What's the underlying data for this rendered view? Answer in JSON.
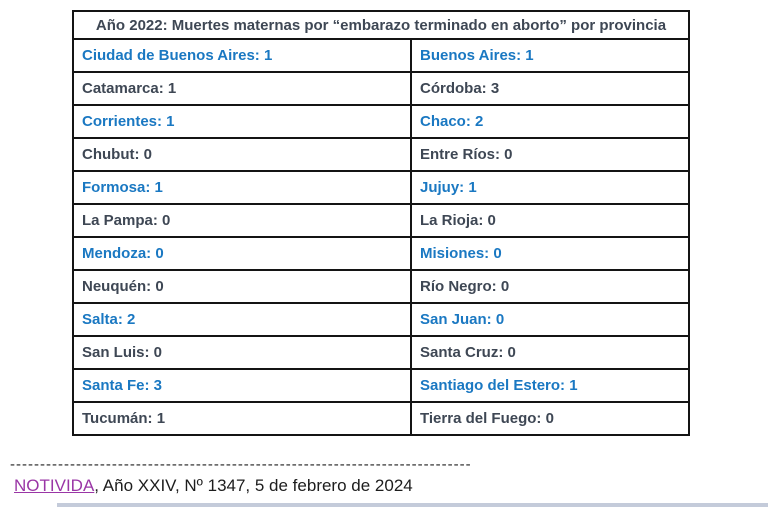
{
  "colors": {
    "highlight_blue": "#1a78c2",
    "text_dark": "#3e4754",
    "link_purple": "#9a36a6"
  },
  "table": {
    "title": "Año 2022: Muertes maternas por “embarazo terminado en aborto” por provincia",
    "rows": [
      {
        "highlight": true,
        "left": {
          "province": "Ciudad de Buenos Aires",
          "deaths": "1"
        },
        "right": {
          "province": "Buenos Aires",
          "deaths": "1"
        }
      },
      {
        "highlight": false,
        "left": {
          "province": "Catamarca",
          "deaths": "1"
        },
        "right": {
          "province": "Córdoba",
          "deaths": "3"
        }
      },
      {
        "highlight": true,
        "left": {
          "province": "Corrientes",
          "deaths": "1"
        },
        "right": {
          "province": "Chaco",
          "deaths": "2"
        }
      },
      {
        "highlight": false,
        "left": {
          "province": "Chubut",
          "deaths": "0"
        },
        "right": {
          "province": "Entre Ríos",
          "deaths": "0"
        }
      },
      {
        "highlight": true,
        "left": {
          "province": "Formosa",
          "deaths": "1"
        },
        "right": {
          "province": "Jujuy",
          "deaths": "1"
        }
      },
      {
        "highlight": false,
        "left": {
          "province": "La Pampa",
          "deaths": "0"
        },
        "right": {
          "province": "La Rioja",
          "deaths": "0"
        }
      },
      {
        "highlight": true,
        "left": {
          "province": "Mendoza",
          "deaths": "0"
        },
        "right": {
          "province": "Misiones",
          "deaths": "0"
        }
      },
      {
        "highlight": false,
        "left": {
          "province": "Neuquén",
          "deaths": "0"
        },
        "right": {
          "province": "Río Negro",
          "deaths": "0"
        }
      },
      {
        "highlight": true,
        "left": {
          "province": "Salta",
          "deaths": "2"
        },
        "right": {
          "province": "San Juan",
          "deaths": "0"
        }
      },
      {
        "highlight": false,
        "left": {
          "province": "San Luis",
          "deaths": "0"
        },
        "right": {
          "province": "Santa Cruz",
          "deaths": "0"
        }
      },
      {
        "highlight": true,
        "left": {
          "province": "Santa Fe",
          "deaths": "3"
        },
        "right": {
          "province": "Santiago del Estero",
          "deaths": "1"
        }
      },
      {
        "highlight": false,
        "left": {
          "province": "Tucumán",
          "deaths": "1"
        },
        "right": {
          "province": "Tierra del Fuego",
          "deaths": "0"
        }
      }
    ]
  },
  "separator": "------------------------------------------------------------------------------------------",
  "footer": {
    "link": "NOTIVIDA",
    "rest": ", Año XXIV, Nº 1347, 5 de febrero de 2024"
  }
}
